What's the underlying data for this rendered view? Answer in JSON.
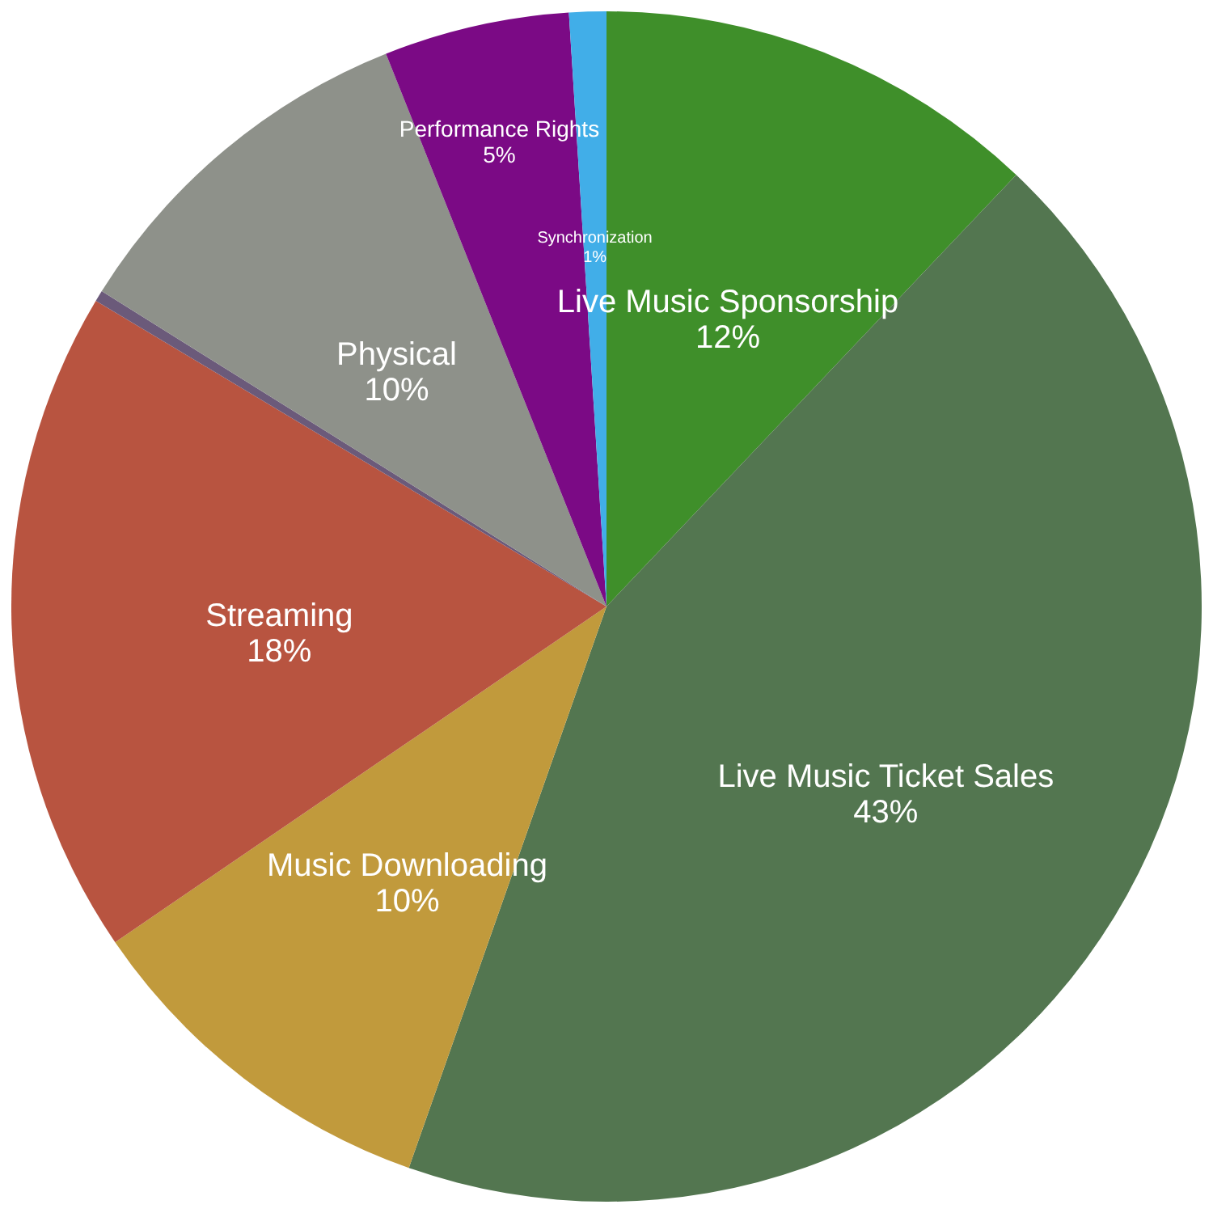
{
  "chart_data": {
    "type": "pie",
    "categories": [
      "Live Music Sponsorship",
      "Live Music Ticket Sales",
      "Music Downloading",
      "Streaming",
      null,
      "Physical",
      "Performance Rights",
      "Synchronization"
    ],
    "values": [
      12,
      43,
      10,
      18,
      0.3,
      10,
      5,
      1
    ],
    "value_labels": [
      "12%",
      "43%",
      "10%",
      "18%",
      null,
      "10%",
      "5%",
      "1%"
    ],
    "colors": [
      "#3f8f2a",
      "#537650",
      "#c19a3c",
      "#b85440",
      "#6b5a7a",
      "#8e918a",
      "#7b0a85",
      "#41aee8"
    ]
  }
}
